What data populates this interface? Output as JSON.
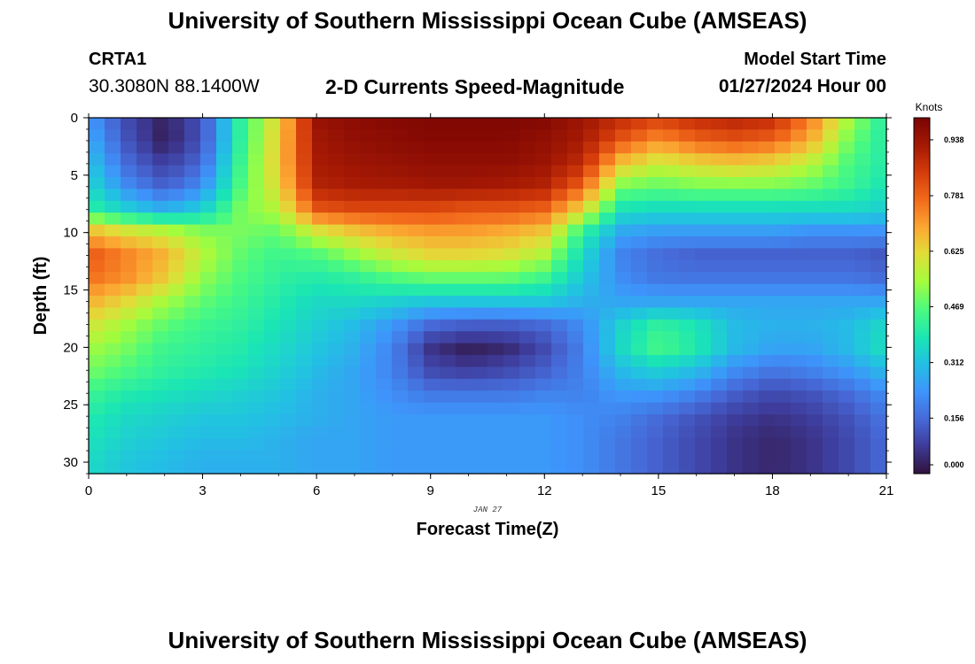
{
  "header": {
    "title": "University of Southern Mississippi Ocean Cube (AMSEAS)",
    "station_id": "CRTA1",
    "station_coords": "30.3080N  88.1400W",
    "plot_title": "2-D Currents Speed-Magnitude",
    "model_start_label": "Model Start Time",
    "model_start_value": "01/27/2024 Hour 00"
  },
  "footer": {
    "title": "University of Southern Mississippi Ocean Cube (AMSEAS)"
  },
  "chart_data": {
    "type": "heatmap",
    "xlabel": "Forecast Time(Z)",
    "ylabel": "Depth (ft)",
    "date_label": "JAN 27",
    "xlim": [
      0,
      21
    ],
    "ylim": [
      0,
      31
    ],
    "x_ticks": [
      "0",
      "3",
      "6",
      "9",
      "12",
      "15",
      "18",
      "21"
    ],
    "y_ticks": [
      "0",
      "5",
      "10",
      "15",
      "20",
      "25",
      "30"
    ],
    "colorbar": {
      "label": "Knots",
      "min": 0.0,
      "max": 1.0,
      "ticks": [
        "0.000",
        "0.156",
        "0.312",
        "0.469",
        "0.625",
        "0.781",
        "0.938"
      ]
    },
    "colors": {
      "ramp": [
        "#30123b",
        "#3e3c9b",
        "#4668d6",
        "#3e94fb",
        "#22c0e3",
        "#1ae5b5",
        "#4afa80",
        "#a4fc3c",
        "#e2dc38",
        "#fba832",
        "#f26a1b",
        "#d23a0a",
        "#a61a04",
        "#7a0403"
      ]
    },
    "speed_field": {
      "note": "approximate current speed (knots) by depth (ft) and forecast hour (Z)",
      "hours": [
        0,
        1,
        2,
        3,
        4,
        5,
        6,
        7,
        8,
        9,
        10,
        11,
        12,
        13,
        14,
        15,
        16,
        17,
        18,
        19,
        20,
        21
      ],
      "depths_ft": [
        0,
        2,
        4,
        6,
        8,
        10,
        12,
        14,
        16,
        18,
        20,
        22,
        24,
        26,
        28,
        30
      ],
      "values": [
        [
          0.24,
          0.1,
          0.03,
          0.12,
          0.42,
          0.62,
          0.95,
          0.97,
          0.98,
          0.99,
          0.99,
          0.99,
          0.98,
          0.94,
          0.88,
          0.84,
          0.88,
          0.9,
          0.88,
          0.75,
          0.55,
          0.4
        ],
        [
          0.28,
          0.12,
          0.02,
          0.12,
          0.42,
          0.64,
          0.93,
          0.96,
          0.97,
          0.98,
          0.98,
          0.98,
          0.96,
          0.92,
          0.8,
          0.72,
          0.78,
          0.8,
          0.78,
          0.68,
          0.5,
          0.4
        ],
        [
          0.32,
          0.16,
          0.08,
          0.16,
          0.44,
          0.64,
          0.92,
          0.94,
          0.95,
          0.96,
          0.96,
          0.96,
          0.94,
          0.88,
          0.65,
          0.58,
          0.62,
          0.64,
          0.62,
          0.56,
          0.46,
          0.4
        ],
        [
          0.36,
          0.22,
          0.14,
          0.22,
          0.46,
          0.62,
          0.9,
          0.92,
          0.92,
          0.93,
          0.93,
          0.92,
          0.9,
          0.78,
          0.5,
          0.48,
          0.5,
          0.5,
          0.5,
          0.48,
          0.44,
          0.38
        ],
        [
          0.42,
          0.34,
          0.28,
          0.34,
          0.5,
          0.56,
          0.8,
          0.82,
          0.82,
          0.82,
          0.8,
          0.8,
          0.78,
          0.62,
          0.38,
          0.36,
          0.36,
          0.36,
          0.36,
          0.36,
          0.36,
          0.34
        ],
        [
          0.68,
          0.62,
          0.58,
          0.52,
          0.5,
          0.48,
          0.58,
          0.64,
          0.68,
          0.7,
          0.7,
          0.68,
          0.64,
          0.42,
          0.26,
          0.24,
          0.24,
          0.24,
          0.24,
          0.22,
          0.22,
          0.22
        ],
        [
          0.8,
          0.74,
          0.68,
          0.56,
          0.48,
          0.44,
          0.46,
          0.52,
          0.58,
          0.62,
          0.62,
          0.6,
          0.55,
          0.36,
          0.2,
          0.16,
          0.14,
          0.14,
          0.14,
          0.14,
          0.14,
          0.12
        ],
        [
          0.76,
          0.72,
          0.64,
          0.52,
          0.46,
          0.42,
          0.4,
          0.42,
          0.46,
          0.48,
          0.48,
          0.48,
          0.44,
          0.32,
          0.22,
          0.18,
          0.18,
          0.18,
          0.18,
          0.18,
          0.18,
          0.16
        ],
        [
          0.68,
          0.62,
          0.54,
          0.48,
          0.44,
          0.4,
          0.36,
          0.36,
          0.34,
          0.32,
          0.32,
          0.32,
          0.32,
          0.28,
          0.26,
          0.26,
          0.26,
          0.26,
          0.26,
          0.26,
          0.26,
          0.26
        ],
        [
          0.6,
          0.54,
          0.48,
          0.44,
          0.42,
          0.38,
          0.34,
          0.3,
          0.24,
          0.16,
          0.14,
          0.14,
          0.16,
          0.22,
          0.34,
          0.42,
          0.38,
          0.3,
          0.28,
          0.28,
          0.3,
          0.36
        ],
        [
          0.54,
          0.5,
          0.44,
          0.42,
          0.4,
          0.36,
          0.32,
          0.28,
          0.2,
          0.06,
          0.02,
          0.04,
          0.1,
          0.2,
          0.36,
          0.46,
          0.4,
          0.3,
          0.26,
          0.26,
          0.3,
          0.38
        ],
        [
          0.5,
          0.46,
          0.42,
          0.4,
          0.38,
          0.34,
          0.3,
          0.26,
          0.2,
          0.1,
          0.08,
          0.1,
          0.14,
          0.2,
          0.3,
          0.34,
          0.3,
          0.22,
          0.18,
          0.2,
          0.24,
          0.3
        ],
        [
          0.44,
          0.4,
          0.38,
          0.36,
          0.34,
          0.32,
          0.28,
          0.26,
          0.22,
          0.18,
          0.18,
          0.18,
          0.2,
          0.2,
          0.24,
          0.24,
          0.2,
          0.14,
          0.1,
          0.12,
          0.16,
          0.22
        ],
        [
          0.4,
          0.36,
          0.34,
          0.32,
          0.32,
          0.3,
          0.28,
          0.26,
          0.24,
          0.24,
          0.24,
          0.24,
          0.24,
          0.22,
          0.2,
          0.16,
          0.12,
          0.08,
          0.06,
          0.08,
          0.12,
          0.18
        ],
        [
          0.38,
          0.34,
          0.32,
          0.3,
          0.3,
          0.28,
          0.26,
          0.26,
          0.24,
          0.24,
          0.24,
          0.24,
          0.24,
          0.22,
          0.18,
          0.14,
          0.1,
          0.06,
          0.04,
          0.06,
          0.1,
          0.16
        ],
        [
          0.36,
          0.32,
          0.3,
          0.28,
          0.28,
          0.28,
          0.26,
          0.26,
          0.24,
          0.24,
          0.24,
          0.24,
          0.24,
          0.22,
          0.18,
          0.14,
          0.1,
          0.06,
          0.04,
          0.06,
          0.1,
          0.16
        ]
      ]
    }
  }
}
